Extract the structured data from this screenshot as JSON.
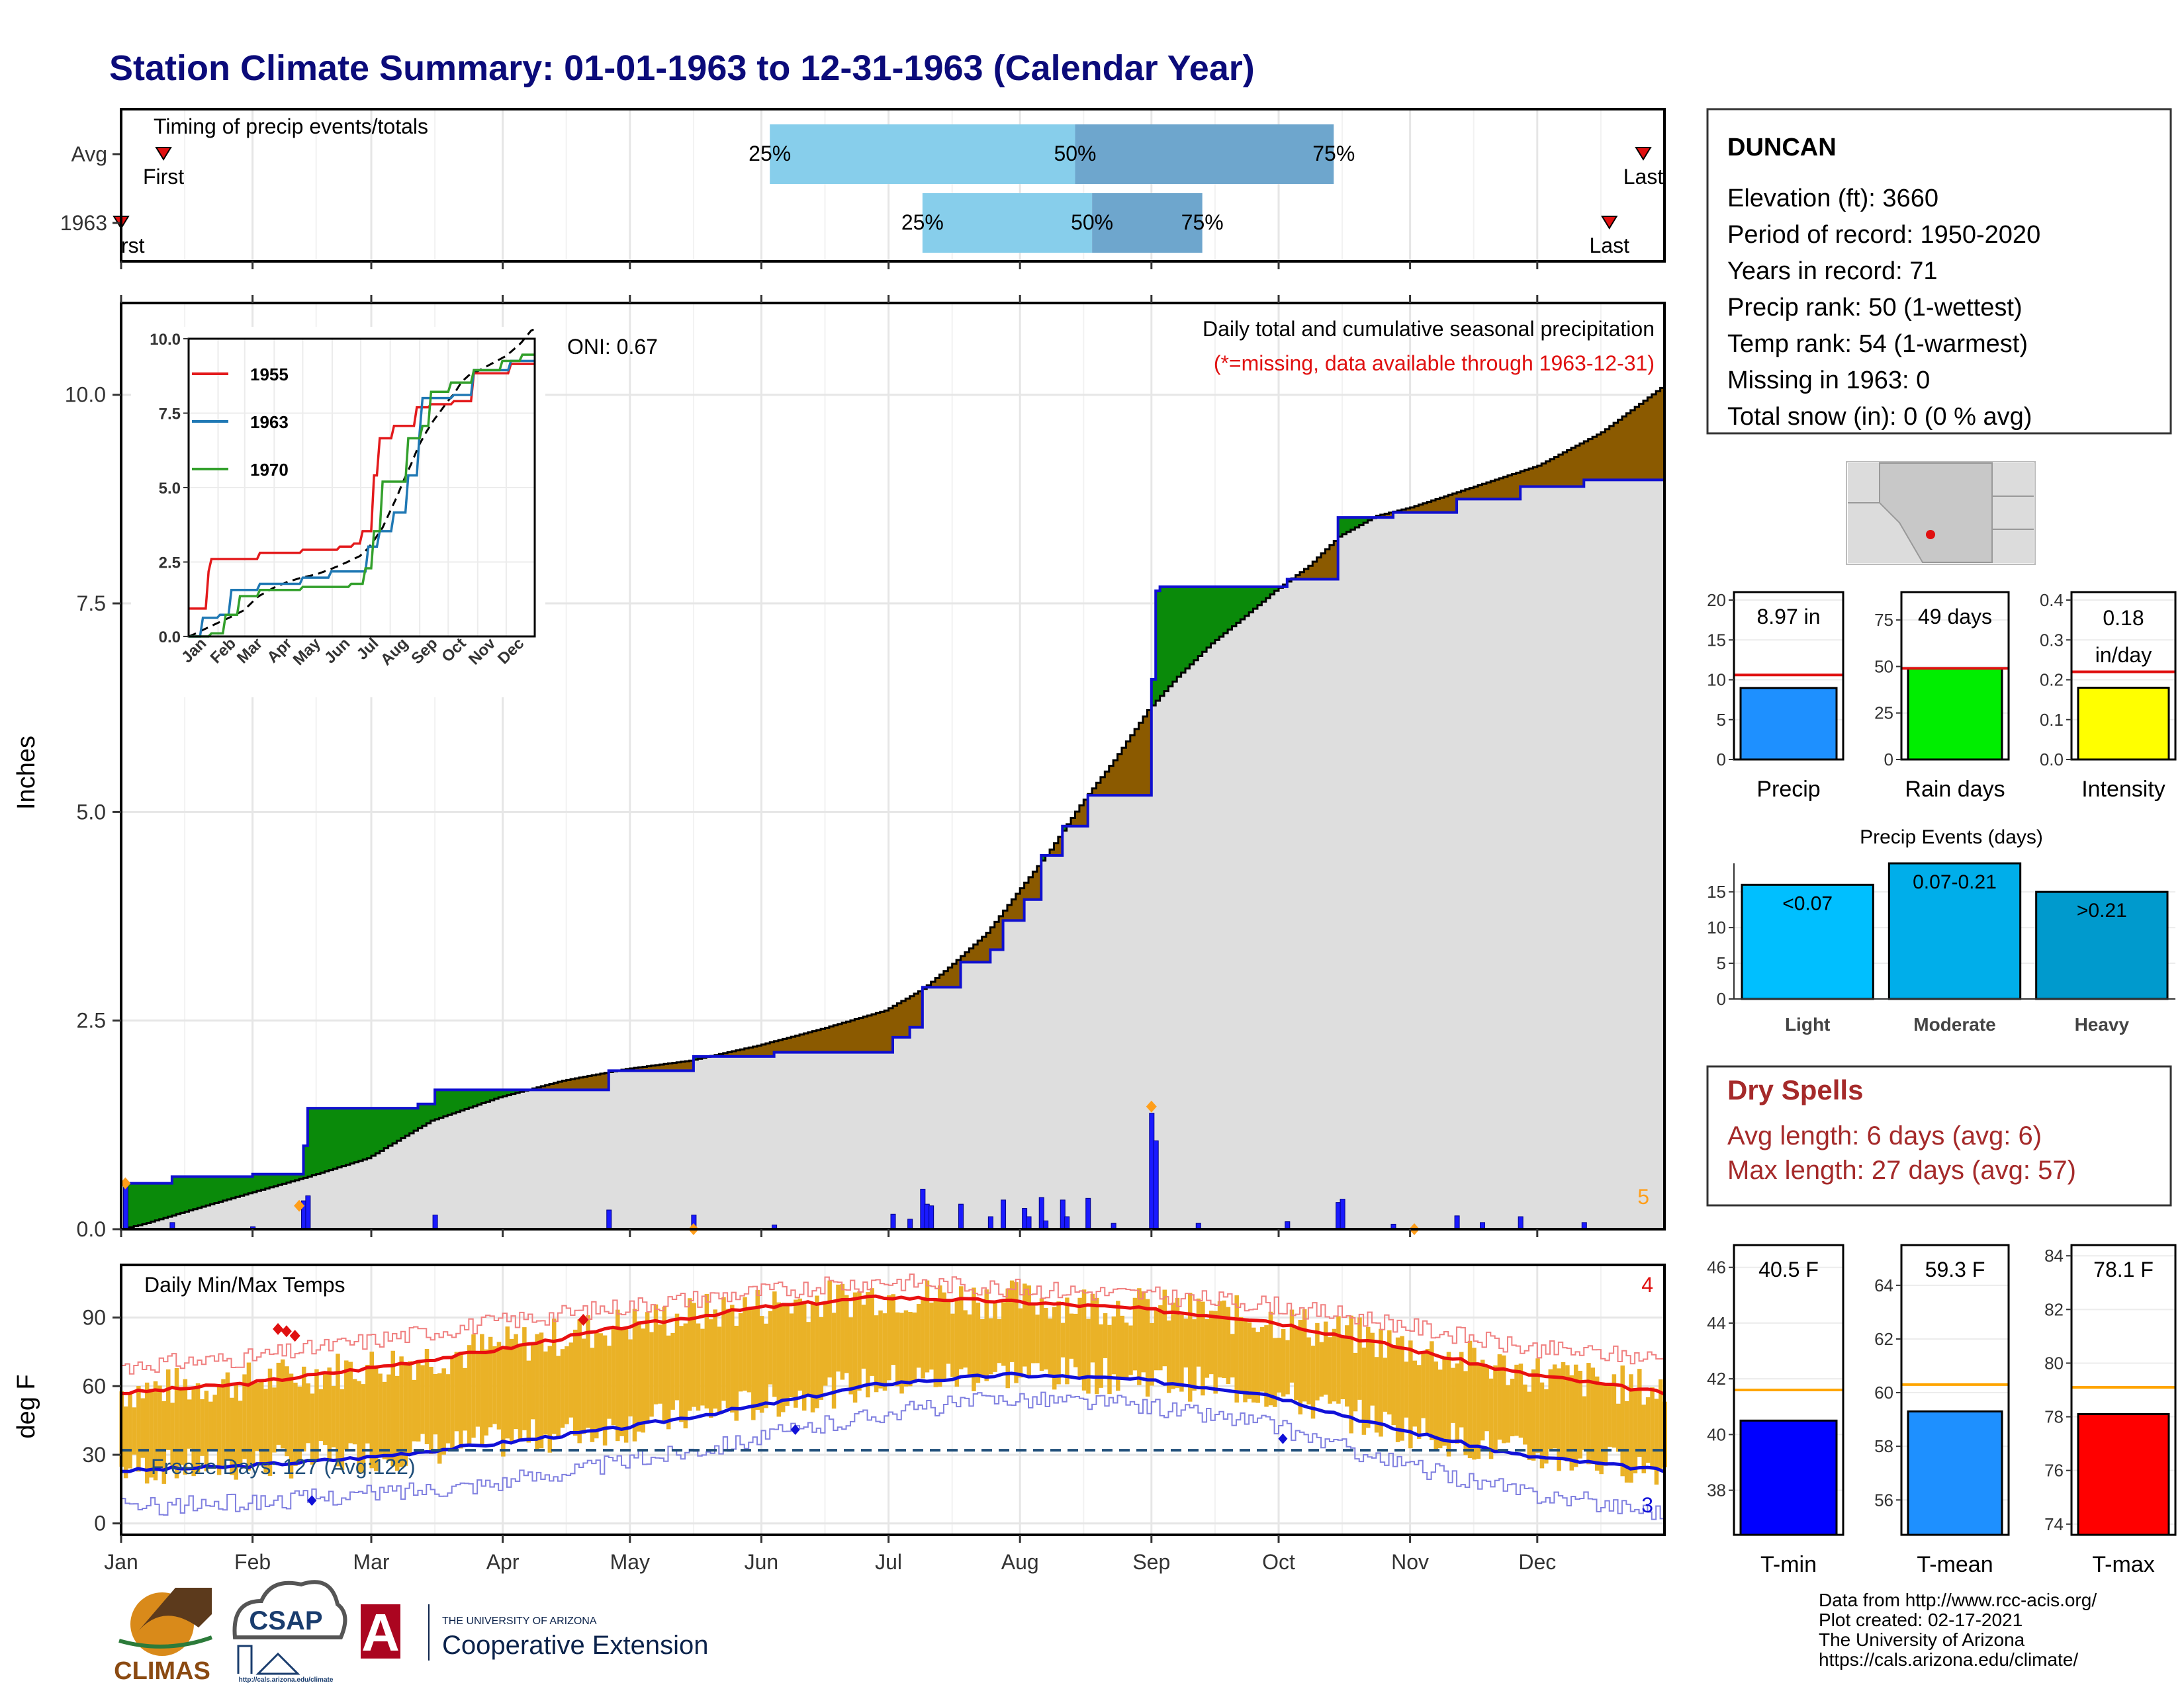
{
  "title": "Station Climate Summary: 01-01-1963 to 12-31-1963 (Calendar Year)",
  "months": [
    "Jan",
    "Feb",
    "Mar",
    "Apr",
    "May",
    "Jun",
    "Jul",
    "Aug",
    "Sep",
    "Oct",
    "Nov",
    "Dec"
  ],
  "colors": {
    "title": "#0b0b7a",
    "brown": "#8b5a00",
    "green": "#0a8a0a",
    "blue_line": "#1010d0",
    "grey_fill": "#dedede",
    "gold": "#eab227",
    "red": "#e01010",
    "blue_tmin": "#1a1ad8"
  },
  "timing_panel": {
    "label": "Timing of precip events/totals",
    "rows": [
      "Avg",
      "1963"
    ],
    "avg": {
      "first_doy": 11,
      "last_doy": 360,
      "p25_doy": 154,
      "p50_doy": 226,
      "p75_doy": 287
    },
    "y1963": {
      "first_doy": 1,
      "last_doy": 352,
      "p25_doy": 190,
      "p50_doy": 230,
      "p75_doy": 256
    },
    "pct_labels": [
      "25%",
      "50%",
      "75%"
    ],
    "first_label": "First",
    "first_label_clipped": "rst",
    "last_label": "Last"
  },
  "station_box": {
    "name": "DUNCAN",
    "lines": [
      "Elevation (ft): 3660",
      "Period of record: 1950-2020",
      "Years in record: 71",
      "Precip rank: 50 (1-wettest)",
      "Temp rank: 54 (1-warmest)",
      "Missing in 1963: 0",
      "Total snow (in): 0 (0 % avg)"
    ]
  },
  "dry_spells": {
    "title": "Dry Spells",
    "avg": "Avg length: 6 days (avg: 6)",
    "max": "Max length: 27 days (avg: 57)"
  },
  "footer": {
    "lines": [
      "Data from http://www.rcc-acis.org/",
      "Plot created: 02-17-2021",
      "The University of Arizona",
      "https://cals.arizona.edu/climate/"
    ]
  },
  "logos": {
    "climas": "CLIMAS",
    "csap": "CSAP",
    "csap_url": "http://cals.arizona.edu/climate",
    "ua_small": "THE UNIVERSITY OF ARIZONA",
    "ua_big": "Cooperative Extension",
    "ua_letter": "A"
  },
  "chart_data": [
    {
      "type": "area",
      "name": "precip",
      "title": "Daily total and cumulative seasonal precipitation",
      "subtitle": "(*=missing, data available through 1963-12-31)",
      "ylabel": "Inches",
      "ylim": [
        0,
        11.1
      ],
      "yticks": [
        0.0,
        2.5,
        5.0,
        7.5,
        10.0
      ],
      "oni": "ONI: 0.67",
      "corner_count": "5",
      "avg_cum": [
        [
          1,
          0
        ],
        [
          6,
          0.06
        ],
        [
          12,
          0.15
        ],
        [
          20,
          0.27
        ],
        [
          31,
          0.43
        ],
        [
          45,
          0.63
        ],
        [
          59,
          0.85
        ],
        [
          74,
          1.3
        ],
        [
          90,
          1.58
        ],
        [
          105,
          1.78
        ],
        [
          120,
          1.92
        ],
        [
          135,
          2.02
        ],
        [
          151,
          2.2
        ],
        [
          166,
          2.4
        ],
        [
          181,
          2.62
        ],
        [
          190,
          2.88
        ],
        [
          197,
          3.18
        ],
        [
          205,
          3.55
        ],
        [
          212,
          4.02
        ],
        [
          220,
          4.55
        ],
        [
          227,
          5.08
        ],
        [
          235,
          5.62
        ],
        [
          243,
          6.22
        ],
        [
          250,
          6.62
        ],
        [
          258,
          7.02
        ],
        [
          266,
          7.35
        ],
        [
          273,
          7.65
        ],
        [
          281,
          7.95
        ],
        [
          288,
          8.3
        ],
        [
          297,
          8.55
        ],
        [
          305,
          8.65
        ],
        [
          320,
          8.9
        ],
        [
          335,
          9.15
        ],
        [
          350,
          9.55
        ],
        [
          365,
          10.12
        ]
      ],
      "obs_cum": [
        [
          1,
          0.0
        ],
        [
          2,
          0.55
        ],
        [
          12,
          0.55
        ],
        [
          13,
          0.63
        ],
        [
          31,
          0.63
        ],
        [
          32,
          0.66
        ],
        [
          43,
          0.66
        ],
        [
          44,
          1.0
        ],
        [
          45,
          1.45
        ],
        [
          70,
          1.45
        ],
        [
          71,
          1.5
        ],
        [
          74,
          1.5
        ],
        [
          75,
          1.67
        ],
        [
          115,
          1.67
        ],
        [
          116,
          1.9
        ],
        [
          135,
          1.9
        ],
        [
          136,
          2.07
        ],
        [
          154,
          2.07
        ],
        [
          155,
          2.12
        ],
        [
          182,
          2.12
        ],
        [
          183,
          2.3
        ],
        [
          186,
          2.3
        ],
        [
          187,
          2.42
        ],
        [
          189,
          2.42
        ],
        [
          190,
          2.9
        ],
        [
          198,
          2.9
        ],
        [
          199,
          3.2
        ],
        [
          205,
          3.2
        ],
        [
          206,
          3.35
        ],
        [
          208,
          3.35
        ],
        [
          209,
          3.7
        ],
        [
          213,
          3.7
        ],
        [
          214,
          3.95
        ],
        [
          217,
          3.95
        ],
        [
          218,
          4.48
        ],
        [
          222,
          4.48
        ],
        [
          223,
          4.83
        ],
        [
          228,
          4.83
        ],
        [
          229,
          5.2
        ],
        [
          243,
          5.2
        ],
        [
          244,
          6.59
        ],
        [
          245,
          7.65
        ],
        [
          246,
          7.7
        ],
        [
          275,
          7.7
        ],
        [
          276,
          7.79
        ],
        [
          287,
          7.79
        ],
        [
          288,
          8.53
        ],
        [
          300,
          8.53
        ],
        [
          301,
          8.59
        ],
        [
          315,
          8.59
        ],
        [
          316,
          8.75
        ],
        [
          330,
          8.75
        ],
        [
          331,
          8.9
        ],
        [
          345,
          8.9
        ],
        [
          346,
          8.98
        ],
        [
          365,
          8.98
        ]
      ],
      "daily_bars": [
        [
          2,
          0.55
        ],
        [
          13,
          0.08
        ],
        [
          32,
          0.03
        ],
        [
          44,
          0.34
        ],
        [
          45,
          0.4
        ],
        [
          75,
          0.17
        ],
        [
          116,
          0.23
        ],
        [
          136,
          0.17
        ],
        [
          155,
          0.05
        ],
        [
          183,
          0.18
        ],
        [
          187,
          0.12
        ],
        [
          190,
          0.48
        ],
        [
          191,
          0.3
        ],
        [
          192,
          0.28
        ],
        [
          199,
          0.3
        ],
        [
          206,
          0.15
        ],
        [
          209,
          0.35
        ],
        [
          214,
          0.25
        ],
        [
          215,
          0.15
        ],
        [
          218,
          0.38
        ],
        [
          219,
          0.1
        ],
        [
          223,
          0.35
        ],
        [
          224,
          0.15
        ],
        [
          229,
          0.37
        ],
        [
          235,
          0.07
        ],
        [
          244,
          1.39
        ],
        [
          245,
          1.06
        ],
        [
          255,
          0.07
        ],
        [
          276,
          0.09
        ],
        [
          288,
          0.32
        ],
        [
          289,
          0.36
        ],
        [
          301,
          0.06
        ],
        [
          316,
          0.16
        ],
        [
          322,
          0.08
        ],
        [
          331,
          0.15
        ],
        [
          346,
          0.08
        ]
      ],
      "record_markers": [
        [
          2,
          0.55
        ],
        [
          43,
          0.28
        ],
        [
          136,
          0.0
        ],
        [
          244,
          1.47
        ],
        [
          306,
          0.0
        ]
      ]
    },
    {
      "type": "line",
      "name": "inset",
      "series": [
        {
          "name": "1955"
        },
        {
          "name": "1963"
        },
        {
          "name": "1970"
        }
      ],
      "ylim": [
        0,
        10.0
      ],
      "yticks": [
        0.0,
        2.5,
        5.0,
        7.5,
        10.0
      ],
      "xticks": [
        "Jan",
        "Feb",
        "Mar",
        "Apr",
        "May",
        "Jun",
        "Jul",
        "Aug",
        "Sep",
        "Oct",
        "Nov",
        "Dec"
      ]
    },
    {
      "type": "line",
      "name": "temps",
      "title": "Daily Min/Max Temps",
      "ylabel": "deg F",
      "ylim": [
        -5,
        113
      ],
      "yticks": [
        0,
        30,
        60,
        90
      ],
      "freeze_line": 32,
      "freeze_label": "Freeze Days: 127 (Avg:122)",
      "max_record_count": "4",
      "min_record_count": "3",
      "avg_max": [
        [
          1,
          57
        ],
        [
          30,
          61
        ],
        [
          60,
          68
        ],
        [
          90,
          76
        ],
        [
          120,
          86
        ],
        [
          150,
          94
        ],
        [
          180,
          99
        ],
        [
          210,
          97
        ],
        [
          240,
          94
        ],
        [
          270,
          89
        ],
        [
          300,
          78
        ],
        [
          330,
          66
        ],
        [
          365,
          57
        ]
      ],
      "avg_min": [
        [
          1,
          23
        ],
        [
          30,
          25
        ],
        [
          60,
          29
        ],
        [
          90,
          35
        ],
        [
          120,
          42
        ],
        [
          150,
          51
        ],
        [
          180,
          61
        ],
        [
          210,
          65
        ],
        [
          240,
          63
        ],
        [
          270,
          57
        ],
        [
          300,
          42
        ],
        [
          330,
          30
        ],
        [
          365,
          23
        ]
      ],
      "ext_max": [
        [
          1,
          69
        ],
        [
          30,
          72
        ],
        [
          60,
          80
        ],
        [
          90,
          88
        ],
        [
          120,
          95
        ],
        [
          150,
          101
        ],
        [
          180,
          106
        ],
        [
          210,
          103
        ],
        [
          240,
          100
        ],
        [
          270,
          96
        ],
        [
          300,
          88
        ],
        [
          330,
          77
        ],
        [
          365,
          72
        ]
      ],
      "ext_min": [
        [
          1,
          7
        ],
        [
          30,
          9
        ],
        [
          60,
          13
        ],
        [
          90,
          18
        ],
        [
          120,
          27
        ],
        [
          150,
          37
        ],
        [
          180,
          48
        ],
        [
          210,
          55
        ],
        [
          240,
          52
        ],
        [
          270,
          44
        ],
        [
          300,
          27
        ],
        [
          330,
          14
        ],
        [
          365,
          5
        ]
      ]
    },
    {
      "type": "bar",
      "name": "summary_precip",
      "categories": [
        "Precip"
      ],
      "values": [
        8.97
      ],
      "avg": 10.6,
      "label": "8.97 in",
      "ylim": [
        0,
        21
      ],
      "yticks": [
        0,
        5,
        10,
        15,
        20
      ]
    },
    {
      "type": "bar",
      "name": "summary_raindays",
      "categories": [
        "Rain days"
      ],
      "values": [
        49
      ],
      "avg": 49,
      "label": "49 days",
      "ylim": [
        0,
        90
      ],
      "yticks": [
        0,
        25,
        50,
        75
      ]
    },
    {
      "type": "bar",
      "name": "summary_intensity",
      "categories": [
        "Intensity"
      ],
      "values": [
        0.18
      ],
      "avg": 0.22,
      "label_lines": [
        "0.18",
        "in/day"
      ],
      "ylim": [
        0,
        0.42
      ],
      "yticks": [
        0.0,
        0.1,
        0.2,
        0.3,
        0.4
      ]
    },
    {
      "type": "bar",
      "name": "precip_events",
      "title": "Precip Events (days)",
      "categories": [
        "Light",
        "Moderate",
        "Heavy"
      ],
      "values": [
        16,
        19,
        15
      ],
      "labels": [
        "<0.07",
        "0.07-0.21",
        ">0.21"
      ],
      "ylim": [
        0,
        19
      ],
      "yticks": [
        0,
        5,
        10,
        15
      ]
    },
    {
      "type": "bar",
      "name": "summary_tmin",
      "categories": [
        "T-min"
      ],
      "values": [
        40.5
      ],
      "avg": 41.6,
      "label": "40.5 F",
      "ylim": [
        36.4,
        46.8
      ],
      "yticks": [
        38,
        40,
        42,
        44,
        46
      ]
    },
    {
      "type": "bar",
      "name": "summary_tmean",
      "categories": [
        "T-mean"
      ],
      "values": [
        59.3
      ],
      "avg": 60.3,
      "label": "59.3 F",
      "ylim": [
        54.7,
        65.5
      ],
      "yticks": [
        56,
        58,
        60,
        62,
        64
      ]
    },
    {
      "type": "bar",
      "name": "summary_tmax",
      "categories": [
        "T-max"
      ],
      "values": [
        78.1
      ],
      "avg": 79.1,
      "label": "78.1 F",
      "ylim": [
        73.6,
        84.4
      ],
      "yticks": [
        74,
        76,
        78,
        80,
        82,
        84
      ]
    }
  ]
}
